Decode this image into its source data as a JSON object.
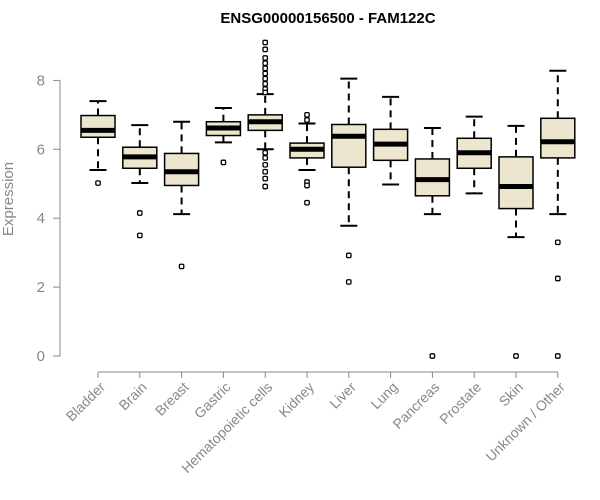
{
  "chart_data": {
    "type": "boxplot",
    "title": "ENSG00000156500 - FAM122C",
    "xlabel": "",
    "ylabel": "Expression",
    "ylim": [
      0,
      9.2
    ],
    "yticks": [
      0,
      2,
      4,
      6,
      8
    ],
    "grid": false,
    "colors": {
      "box_fill": "#ede6ce",
      "stroke": "#000000",
      "axis": "#888888"
    },
    "categories": [
      "Bladder",
      "Brain",
      "Breast",
      "Gastric",
      "Hematopoietic cells",
      "Kidney",
      "Liver",
      "Lung",
      "Pancreas",
      "Prostate",
      "Skin",
      "Unknown / Other"
    ],
    "boxes": [
      {
        "category": "Bladder",
        "whisker_low": 5.4,
        "q1": 6.35,
        "median": 6.55,
        "q3": 6.98,
        "whisker_high": 7.4,
        "outliers": [
          5.02
        ]
      },
      {
        "category": "Brain",
        "whisker_low": 5.02,
        "q1": 5.45,
        "median": 5.78,
        "q3": 6.06,
        "whisker_high": 6.7,
        "outliers": [
          4.15,
          3.5
        ]
      },
      {
        "category": "Breast",
        "whisker_low": 4.12,
        "q1": 4.95,
        "median": 5.35,
        "q3": 5.88,
        "whisker_high": 6.8,
        "outliers": [
          2.6
        ]
      },
      {
        "category": "Gastric",
        "whisker_low": 6.2,
        "q1": 6.4,
        "median": 6.62,
        "q3": 6.8,
        "whisker_high": 7.2,
        "outliers": [
          5.62
        ]
      },
      {
        "category": "Hematopoietic cells",
        "whisker_low": 6.0,
        "q1": 6.55,
        "median": 6.8,
        "q3": 7.0,
        "whisker_high": 7.6,
        "outliers": [
          9.1,
          8.9,
          8.65,
          8.5,
          8.35,
          8.2,
          8.05,
          7.9,
          7.75,
          7.65,
          5.9,
          5.75,
          5.55,
          5.35,
          5.15,
          4.92
        ]
      },
      {
        "category": "Kidney",
        "whisker_low": 5.4,
        "q1": 5.75,
        "median": 6.0,
        "q3": 6.18,
        "whisker_high": 6.75,
        "outliers": [
          7.0,
          6.85,
          5.05,
          4.95,
          4.45
        ]
      },
      {
        "category": "Liver",
        "whisker_low": 3.78,
        "q1": 5.48,
        "median": 6.38,
        "q3": 6.72,
        "whisker_high": 8.05,
        "outliers": [
          2.92,
          2.15
        ]
      },
      {
        "category": "Lung",
        "whisker_low": 4.98,
        "q1": 5.68,
        "median": 6.15,
        "q3": 6.58,
        "whisker_high": 7.52,
        "outliers": []
      },
      {
        "category": "Pancreas",
        "whisker_low": 4.12,
        "q1": 4.65,
        "median": 5.12,
        "q3": 5.72,
        "whisker_high": 6.62,
        "outliers": [
          0.0
        ]
      },
      {
        "category": "Prostate",
        "whisker_low": 4.72,
        "q1": 5.45,
        "median": 5.9,
        "q3": 6.32,
        "whisker_high": 6.95,
        "outliers": []
      },
      {
        "category": "Skin",
        "whisker_low": 3.45,
        "q1": 4.28,
        "median": 4.92,
        "q3": 5.78,
        "whisker_high": 6.68,
        "outliers": [
          0.0
        ]
      },
      {
        "category": "Unknown / Other",
        "whisker_low": 4.12,
        "q1": 5.75,
        "median": 6.22,
        "q3": 6.9,
        "whisker_high": 8.28,
        "outliers": [
          3.3,
          2.25,
          0.0
        ]
      }
    ]
  }
}
